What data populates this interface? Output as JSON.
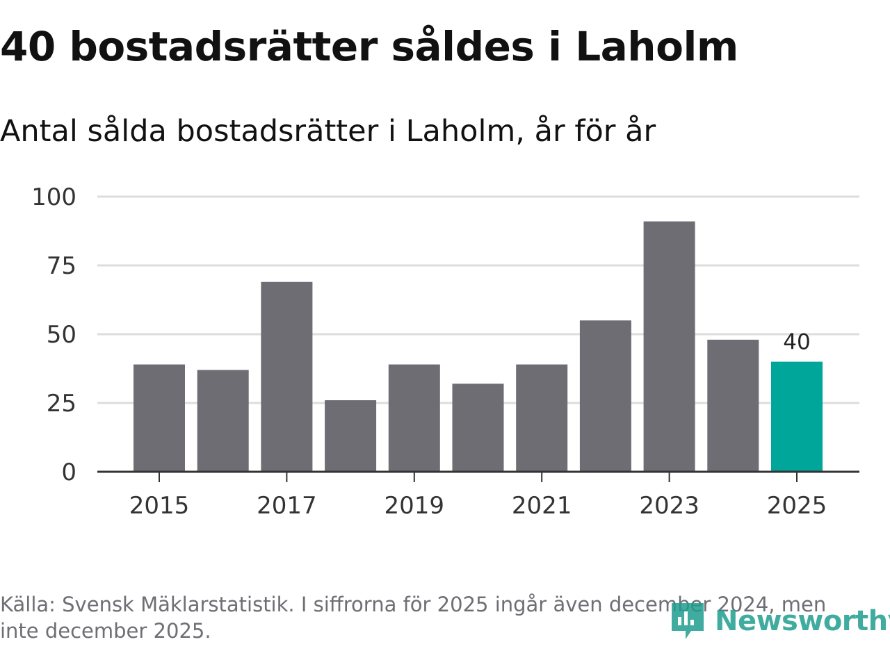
{
  "title": "40 bostadsrätter såldes i Laholm",
  "subtitle": "Antal sålda bostadsrätter i Laholm, år för år",
  "source": "Källa: Svensk Mäklarstatistik. I siffrorna för 2025 ingår även december 2024, men inte december 2025.",
  "logo": {
    "text": "Newsworthy",
    "icon": "newsworthy-logo-icon"
  },
  "colors": {
    "bar": "#6e6d73",
    "highlight": "#00a69a",
    "grid": "#dddddd",
    "axis": "#333333"
  },
  "chart_data": {
    "type": "bar",
    "title": "40 bostadsrätter såldes i Laholm",
    "subtitle": "Antal sålda bostadsrätter i Laholm, år för år",
    "xlabel": "",
    "ylabel": "",
    "categories": [
      "2015",
      "2016",
      "2017",
      "2018",
      "2019",
      "2020",
      "2021",
      "2022",
      "2023",
      "2024",
      "2025"
    ],
    "values": [
      39,
      37,
      69,
      26,
      39,
      32,
      39,
      55,
      91,
      48,
      40
    ],
    "highlight_index": 10,
    "highlight_label": "40",
    "ylim": [
      0,
      100
    ],
    "yticks": [
      0,
      25,
      50,
      75,
      100
    ],
    "xticks": [
      "2015",
      "2017",
      "2019",
      "2021",
      "2023",
      "2025"
    ],
    "grid": true,
    "legend": "none"
  }
}
